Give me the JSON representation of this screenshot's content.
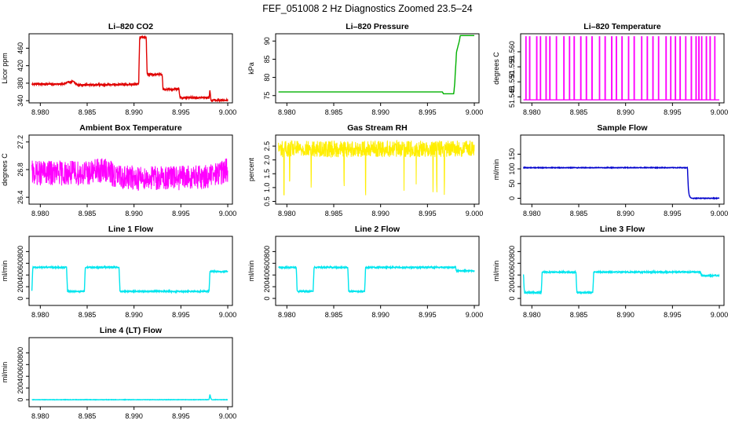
{
  "figure": {
    "title": "FEF_051008  2 Hz Diagnostics Zoomed 23.5–24"
  },
  "chart_data": [
    {
      "type": "line",
      "title": "Li–820 CO2",
      "xlabel": "",
      "ylabel": "Licor ppm",
      "color": "#e00000",
      "xlim": [
        8.9788,
        9.0005
      ],
      "ylim": [
        335,
        493
      ],
      "xticks": [
        "8.980",
        "8.985",
        "8.990",
        "8.995",
        "9.000"
      ],
      "yticks": [
        {
          "v": 340,
          "label": "340"
        },
        {
          "v": 380,
          "label": "380"
        },
        {
          "v": 420,
          "label": "420"
        },
        {
          "v": 460,
          "label": "460"
        }
      ],
      "series": [
        {
          "name": "CO2",
          "noise": 2,
          "x": [
            8.9791,
            8.9825,
            8.983,
            8.9835,
            8.984,
            8.989,
            8.9905,
            8.9906,
            8.9913,
            8.9914,
            8.993,
            8.9931,
            8.9948,
            8.9949,
            8.998,
            8.9981,
            8.9982,
            8.9983,
            9.0
          ],
          "y": [
            378,
            378,
            382,
            384,
            376,
            377,
            378,
            485,
            485,
            400,
            400,
            366,
            366,
            347,
            347,
            364,
            341,
            341,
            341
          ]
        }
      ]
    },
    {
      "type": "line",
      "title": "Li–820 Pressure",
      "xlabel": "",
      "ylabel": "kPa",
      "color": "#00b000",
      "xlim": [
        8.9788,
        9.0005
      ],
      "ylim": [
        73,
        92
      ],
      "xticks": [
        "8.980",
        "8.985",
        "8.990",
        "8.995",
        "9.000"
      ],
      "yticks": [
        {
          "v": 75,
          "label": "75"
        },
        {
          "v": 80,
          "label": "80"
        },
        {
          "v": 85,
          "label": "85"
        },
        {
          "v": 90,
          "label": "90"
        }
      ],
      "series": [
        {
          "name": "Pressure",
          "noise": 0,
          "x": [
            8.9791,
            8.9966,
            8.9967,
            8.9978,
            8.9979,
            8.9981,
            8.9984,
            8.9985,
            9.0
          ],
          "y": [
            76,
            76,
            75.5,
            75.5,
            78,
            87,
            90,
            91.5,
            91.5
          ]
        }
      ]
    },
    {
      "type": "line",
      "title": "Li–820 Temperature",
      "xlabel": "",
      "ylabel": "degrees C",
      "color": "#ff00ff",
      "xlim": [
        8.9788,
        9.0005
      ],
      "ylim": [
        51.543,
        51.566
      ],
      "xticks": [
        "8.980",
        "8.985",
        "8.990",
        "8.995",
        "9.000"
      ],
      "yticks": [
        {
          "v": 51.545,
          "label": "51.545"
        },
        {
          "v": 51.55,
          "label": "51.550"
        },
        {
          "v": 51.555,
          "label": "51.555"
        },
        {
          "v": 51.56,
          "label": "51.560"
        }
      ],
      "series": [
        {
          "name": "Temperature",
          "mode": "spikes",
          "low": 51.544,
          "high": 51.565,
          "spikes": [
            8.97935,
            8.97975,
            8.9805,
            8.9809,
            8.9815,
            8.9819,
            8.9826,
            8.9834,
            8.984,
            8.9845,
            8.9852,
            8.9858,
            8.9864,
            8.9872,
            8.9878,
            8.9885,
            8.989,
            8.9896,
            8.9903,
            8.9909,
            8.9917,
            8.9923,
            8.9929,
            8.9935,
            8.9943,
            8.9948,
            8.9953,
            8.9958,
            8.9964,
            8.997,
            8.9975,
            8.9978,
            8.9981,
            8.9986,
            8.999,
            8.9995
          ]
        }
      ]
    },
    {
      "type": "line",
      "title": "Ambient Box Temperature",
      "xlabel": "",
      "ylabel": "degrees C",
      "color": "#ff00ff",
      "xlim": [
        8.9788,
        9.0005
      ],
      "ylim": [
        26.3,
        27.3
      ],
      "xticks": [
        "8.980",
        "8.985",
        "8.990",
        "8.995",
        "9.000"
      ],
      "yticks": [
        {
          "v": 26.4,
          "label": "26.4"
        },
        {
          "v": 26.8,
          "label": "26.8"
        },
        {
          "v": 27.2,
          "label": "27.2"
        }
      ],
      "series": [
        {
          "name": "Ambient",
          "mode": "band",
          "x": [
            8.9791,
            8.985,
            8.987,
            8.988,
            8.99,
            8.995,
            8.998,
            9.0
          ],
          "center": [
            26.75,
            26.75,
            26.8,
            26.7,
            26.68,
            26.68,
            26.7,
            26.8
          ],
          "amp": 0.18
        }
      ]
    },
    {
      "type": "line",
      "title": "Gas Stream RH",
      "xlabel": "",
      "ylabel": "percent",
      "color": "#ffee00",
      "xlim": [
        8.9788,
        9.0005
      ],
      "ylim": [
        0.4,
        2.9
      ],
      "xticks": [
        "8.980",
        "8.985",
        "8.990",
        "8.995",
        "9.000"
      ],
      "yticks": [
        {
          "v": 0.5,
          "label": "0.5"
        },
        {
          "v": 1.0,
          "label": "1.0"
        },
        {
          "v": 1.5,
          "label": "1.5"
        },
        {
          "v": 2.0,
          "label": "2.0"
        },
        {
          "v": 2.5,
          "label": "2.5"
        }
      ],
      "series": [
        {
          "name": "RH",
          "mode": "band",
          "x": [
            8.9791,
            9.0
          ],
          "center": [
            2.4,
            2.4
          ],
          "amp": 0.3,
          "dips": [
            8.9797,
            8.9803,
            8.9826,
            8.9861,
            8.9884,
            8.9925,
            8.9938,
            8.9956,
            8.996,
            8.9968
          ]
        }
      ]
    },
    {
      "type": "line",
      "title": "Sample Flow",
      "xlabel": "",
      "ylabel": "ml/min",
      "color": "#0000cc",
      "xlim": [
        8.9788,
        9.0005
      ],
      "ylim": [
        -20,
        215
      ],
      "xticks": [
        "8.980",
        "8.985",
        "8.990",
        "8.995",
        "9.000"
      ],
      "yticks": [
        {
          "v": 0,
          "label": "0"
        },
        {
          "v": 50,
          "label": "50"
        },
        {
          "v": 100,
          "label": "100"
        },
        {
          "v": 150,
          "label": "150"
        }
      ],
      "series": [
        {
          "name": "Sample",
          "noise": 1,
          "x": [
            8.9791,
            8.9966,
            8.9967,
            8.9968,
            8.997,
            9.0
          ],
          "y": [
            104,
            104,
            30,
            8,
            0,
            0
          ]
        }
      ]
    },
    {
      "type": "line",
      "title": "Line 1 Flow",
      "xlabel": "",
      "ylabel": "ml/min",
      "color": "#00e5ee",
      "xlim": [
        8.9788,
        9.0005
      ],
      "ylim": [
        -120,
        1060
      ],
      "xticks": [
        "8.980",
        "8.985",
        "8.990",
        "8.995",
        "9.000"
      ],
      "yticks": [
        {
          "v": 0,
          "label": "0"
        },
        {
          "v": 200,
          "label": "200"
        },
        {
          "v": 400,
          "label": "400"
        },
        {
          "v": 600,
          "label": "600"
        },
        {
          "v": 800,
          "label": "800"
        }
      ],
      "series": [
        {
          "name": "Line 1",
          "noise": 10,
          "x": [
            8.9791,
            8.9792,
            8.9828,
            8.9829,
            8.9847,
            8.9848,
            8.9884,
            8.9885,
            8.998,
            8.9981,
            9.0
          ],
          "y": [
            120,
            530,
            530,
            120,
            120,
            530,
            530,
            120,
            120,
            460,
            460
          ]
        }
      ]
    },
    {
      "type": "line",
      "title": "Line 2 Flow",
      "xlabel": "",
      "ylabel": "ml/min",
      "color": "#00e5ee",
      "xlim": [
        8.9788,
        9.0005
      ],
      "ylim": [
        -120,
        1060
      ],
      "xticks": [
        "8.980",
        "8.985",
        "8.990",
        "8.995",
        "9.000"
      ],
      "yticks": [
        {
          "v": 0,
          "label": "0"
        },
        {
          "v": 200,
          "label": "200"
        },
        {
          "v": 400,
          "label": "400"
        },
        {
          "v": 600,
          "label": "600"
        },
        {
          "v": 800,
          "label": "800"
        }
      ],
      "series": [
        {
          "name": "Line 2",
          "noise": 10,
          "x": [
            8.9791,
            8.981,
            8.9811,
            8.9828,
            8.9829,
            8.9865,
            8.9866,
            8.9883,
            8.9884,
            8.998,
            8.9981,
            9.0
          ],
          "y": [
            530,
            530,
            120,
            120,
            530,
            530,
            120,
            120,
            530,
            530,
            470,
            470
          ]
        }
      ]
    },
    {
      "type": "line",
      "title": "Line 3 Flow",
      "xlabel": "",
      "ylabel": "ml/min",
      "color": "#00e5ee",
      "xlim": [
        8.9788,
        9.0005
      ],
      "ylim": [
        -120,
        1060
      ],
      "xticks": [
        "8.980",
        "8.985",
        "8.990",
        "8.995",
        "9.000"
      ],
      "yticks": [
        {
          "v": 0,
          "label": "0"
        },
        {
          "v": 200,
          "label": "200"
        },
        {
          "v": 400,
          "label": "400"
        },
        {
          "v": 600,
          "label": "600"
        },
        {
          "v": 800,
          "label": "800"
        }
      ],
      "series": [
        {
          "name": "Line 3",
          "noise": 10,
          "x": [
            8.9791,
            8.9792,
            8.981,
            8.9811,
            8.9847,
            8.9848,
            8.9865,
            8.9866,
            8.998,
            8.9981,
            9.0
          ],
          "y": [
            420,
            100,
            100,
            450,
            450,
            100,
            100,
            450,
            450,
            390,
            390
          ]
        }
      ]
    },
    {
      "type": "line",
      "title": "Line 4 (LT) Flow",
      "xlabel": "",
      "ylabel": "ml/min",
      "color": "#00e5ee",
      "xlim": [
        8.9788,
        9.0005
      ],
      "ylim": [
        -120,
        1060
      ],
      "xticks": [
        "8.980",
        "8.985",
        "8.990",
        "8.995",
        "9.000"
      ],
      "yticks": [
        {
          "v": 0,
          "label": "0"
        },
        {
          "v": 200,
          "label": "200"
        },
        {
          "v": 400,
          "label": "400"
        },
        {
          "v": 600,
          "label": "600"
        },
        {
          "v": 800,
          "label": "800"
        }
      ],
      "series": [
        {
          "name": "Line 4",
          "noise": 3,
          "x": [
            8.9791,
            8.998,
            8.9981,
            8.9982,
            8.9983,
            9.0
          ],
          "y": [
            0,
            0,
            90,
            20,
            0,
            0
          ]
        }
      ]
    }
  ]
}
